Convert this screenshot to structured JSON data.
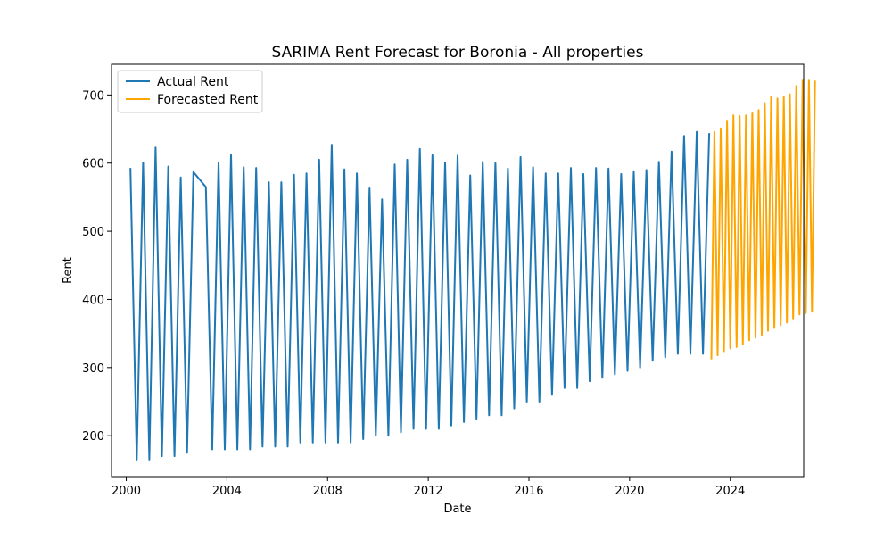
{
  "chart_data": {
    "type": "line",
    "title": "SARIMA Rent Forecast for Boronia - All properties",
    "xlabel": "Date",
    "ylabel": "Rent",
    "x_scale": "date",
    "xlim": [
      "1999-06-01",
      "2026-12-01"
    ],
    "ylim": [
      140,
      745
    ],
    "x_ticks": [
      "2000",
      "2004",
      "2008",
      "2012",
      "2016",
      "2020",
      "2024"
    ],
    "y_ticks": [
      200,
      300,
      400,
      500,
      600,
      700
    ],
    "grid": false,
    "legend": "upper-left",
    "series": [
      {
        "name": "Actual Rent",
        "color": "#1f77b4",
        "points": [
          [
            "2000-03-01",
            593
          ],
          [
            "2000-06-01",
            165
          ],
          [
            "2000-09-01",
            601
          ],
          [
            "2000-12-01",
            165
          ],
          [
            "2001-03-01",
            623
          ],
          [
            "2001-06-01",
            170
          ],
          [
            "2001-09-01",
            595
          ],
          [
            "2001-12-01",
            170
          ],
          [
            "2002-03-01",
            579
          ],
          [
            "2002-06-01",
            175
          ],
          [
            "2002-09-01",
            587
          ],
          [
            "2002-12-01",
            576
          ],
          [
            "2003-03-01",
            565
          ],
          [
            "2003-06-01",
            180
          ],
          [
            "2003-09-01",
            601
          ],
          [
            "2003-12-01",
            180
          ],
          [
            "2004-03-01",
            612
          ],
          [
            "2004-06-01",
            180
          ],
          [
            "2004-09-01",
            594
          ],
          [
            "2004-12-01",
            180
          ],
          [
            "2005-03-01",
            593
          ],
          [
            "2005-06-01",
            184
          ],
          [
            "2005-09-01",
            572
          ],
          [
            "2005-12-01",
            184
          ],
          [
            "2006-03-01",
            572
          ],
          [
            "2006-06-01",
            184
          ],
          [
            "2006-09-01",
            583
          ],
          [
            "2006-12-01",
            190
          ],
          [
            "2007-03-01",
            585
          ],
          [
            "2007-06-01",
            190
          ],
          [
            "2007-09-01",
            605
          ],
          [
            "2007-12-01",
            190
          ],
          [
            "2008-03-01",
            627
          ],
          [
            "2008-06-01",
            190
          ],
          [
            "2008-09-01",
            591
          ],
          [
            "2008-12-01",
            190
          ],
          [
            "2009-03-01",
            585
          ],
          [
            "2009-06-01",
            195
          ],
          [
            "2009-09-01",
            563
          ],
          [
            "2009-12-01",
            200
          ],
          [
            "2010-03-01",
            547
          ],
          [
            "2010-06-01",
            200
          ],
          [
            "2010-09-01",
            598
          ],
          [
            "2010-12-01",
            205
          ],
          [
            "2011-03-01",
            605
          ],
          [
            "2011-06-01",
            210
          ],
          [
            "2011-09-01",
            621
          ],
          [
            "2011-12-01",
            210
          ],
          [
            "2012-03-01",
            612
          ],
          [
            "2012-06-01",
            210
          ],
          [
            "2012-09-01",
            601
          ],
          [
            "2012-12-01",
            215
          ],
          [
            "2013-03-01",
            611
          ],
          [
            "2013-06-01",
            220
          ],
          [
            "2013-09-01",
            582
          ],
          [
            "2013-12-01",
            225
          ],
          [
            "2014-03-01",
            602
          ],
          [
            "2014-06-01",
            230
          ],
          [
            "2014-09-01",
            600
          ],
          [
            "2014-12-01",
            230
          ],
          [
            "2015-03-01",
            592
          ],
          [
            "2015-06-01",
            240
          ],
          [
            "2015-09-01",
            609
          ],
          [
            "2015-12-01",
            250
          ],
          [
            "2016-03-01",
            594
          ],
          [
            "2016-06-01",
            250
          ],
          [
            "2016-09-01",
            585
          ],
          [
            "2016-12-01",
            260
          ],
          [
            "2017-03-01",
            585
          ],
          [
            "2017-06-01",
            270
          ],
          [
            "2017-09-01",
            593
          ],
          [
            "2017-12-01",
            270
          ],
          [
            "2018-03-01",
            584
          ],
          [
            "2018-06-01",
            280
          ],
          [
            "2018-09-01",
            593
          ],
          [
            "2018-12-01",
            285
          ],
          [
            "2019-03-01",
            592
          ],
          [
            "2019-06-01",
            290
          ],
          [
            "2019-09-01",
            584
          ],
          [
            "2019-12-01",
            295
          ],
          [
            "2020-03-01",
            587
          ],
          [
            "2020-06-01",
            300
          ],
          [
            "2020-09-01",
            590
          ],
          [
            "2020-12-01",
            310
          ],
          [
            "2021-03-01",
            602
          ],
          [
            "2021-06-01",
            315
          ],
          [
            "2021-09-01",
            617
          ],
          [
            "2021-12-01",
            320
          ],
          [
            "2022-03-01",
            640
          ],
          [
            "2022-06-01",
            320
          ],
          [
            "2022-09-01",
            646
          ],
          [
            "2022-12-01",
            320
          ],
          [
            "2023-03-01",
            644
          ]
        ]
      },
      {
        "name": "Forecasted Rent",
        "color": "#ffa500",
        "points": [
          [
            "2023-04-01",
            312
          ],
          [
            "2023-05-15",
            646
          ],
          [
            "2023-07-01",
            318
          ],
          [
            "2023-08-15",
            651
          ],
          [
            "2023-10-01",
            324
          ],
          [
            "2023-11-15",
            661
          ],
          [
            "2024-01-01",
            328
          ],
          [
            "2024-02-15",
            670
          ],
          [
            "2024-04-01",
            330
          ],
          [
            "2024-05-15",
            669
          ],
          [
            "2024-07-01",
            334
          ],
          [
            "2024-08-15",
            670
          ],
          [
            "2024-10-01",
            340
          ],
          [
            "2024-11-15",
            673
          ],
          [
            "2025-01-01",
            344
          ],
          [
            "2025-02-15",
            678
          ],
          [
            "2025-04-01",
            348
          ],
          [
            "2025-05-15",
            688
          ],
          [
            "2025-07-01",
            354
          ],
          [
            "2025-08-15",
            697
          ],
          [
            "2025-10-01",
            358
          ],
          [
            "2025-11-15",
            695
          ],
          [
            "2026-01-01",
            362
          ],
          [
            "2026-02-15",
            697
          ],
          [
            "2026-04-01",
            366
          ],
          [
            "2026-05-15",
            701
          ],
          [
            "2026-07-01",
            372
          ],
          [
            "2026-08-15",
            713
          ],
          [
            "2026-10-01",
            378
          ],
          [
            "2026-11-15",
            721
          ],
          [
            "2027-01-01",
            380
          ],
          [
            "2027-02-15",
            721
          ],
          [
            "2027-04-01",
            382
          ],
          [
            "2027-05-15",
            721
          ]
        ]
      }
    ]
  }
}
